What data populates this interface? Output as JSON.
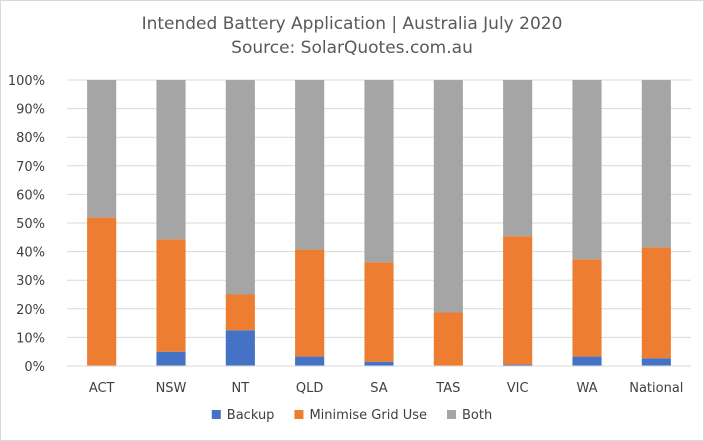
{
  "chart_data": {
    "type": "bar",
    "stacked": true,
    "title": "Intended Battery Application | Australia July 2020",
    "subtitle": "Source: SolarQuotes.com.au",
    "categories": [
      "ACT",
      "NSW",
      "NT",
      "QLD",
      "SA",
      "TAS",
      "VIC",
      "WA",
      "National"
    ],
    "series": [
      {
        "name": "Backup",
        "color": "#4472c4",
        "values": [
          0,
          5,
          12.5,
          3.3,
          1.5,
          0,
          0.5,
          3.3,
          2.7
        ]
      },
      {
        "name": "Minimise Grid Use",
        "color": "#ed7d31",
        "values": [
          52,
          39.3,
          12.5,
          37.4,
          34.8,
          18.7,
          44.9,
          34,
          38.8
        ]
      },
      {
        "name": "Both",
        "color": "#a5a5a5",
        "values": [
          48,
          55.7,
          75,
          59.3,
          63.7,
          81.3,
          54.6,
          62.7,
          58.5
        ]
      }
    ],
    "y_ticks": [
      "0%",
      "10%",
      "20%",
      "30%",
      "40%",
      "50%",
      "60%",
      "70%",
      "80%",
      "90%",
      "100%"
    ],
    "ylim": [
      0,
      100
    ],
    "grid": true,
    "legend_position": "bottom"
  }
}
